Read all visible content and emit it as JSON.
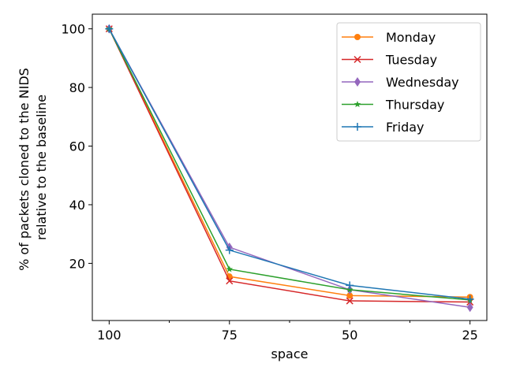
{
  "chart_data": {
    "type": "line",
    "title": "",
    "xlabel": "space",
    "ylabel_lines": [
      "% of packets cloned to the NIDS",
      "relative to the baseline"
    ],
    "x": [
      0,
      1,
      2,
      3
    ],
    "xtick_labels": [
      "100",
      "75",
      "50",
      "25"
    ],
    "xlim": [
      -0.14,
      3.14
    ],
    "ylim": [
      0.5,
      105
    ],
    "yticks": [
      20,
      40,
      60,
      80,
      100
    ],
    "grid": false,
    "legend_position": "top-right",
    "series": [
      {
        "name": "Monday",
        "color": "#ff7f0e",
        "marker": "circle",
        "values": [
          100,
          15.5,
          9,
          8.5
        ]
      },
      {
        "name": "Tuesday",
        "color": "#d62728",
        "marker": "x",
        "values": [
          100,
          14,
          7.2,
          6.8
        ]
      },
      {
        "name": "Wednesday",
        "color": "#9467bd",
        "marker": "diamond",
        "values": [
          100,
          25.5,
          11,
          5
        ]
      },
      {
        "name": "Thursday",
        "color": "#2ca02c",
        "marker": "star",
        "values": [
          100,
          18,
          11,
          7.5
        ]
      },
      {
        "name": "Friday",
        "color": "#1f77b4",
        "marker": "plus",
        "values": [
          100,
          24.5,
          12.5,
          7.8
        ]
      }
    ]
  }
}
